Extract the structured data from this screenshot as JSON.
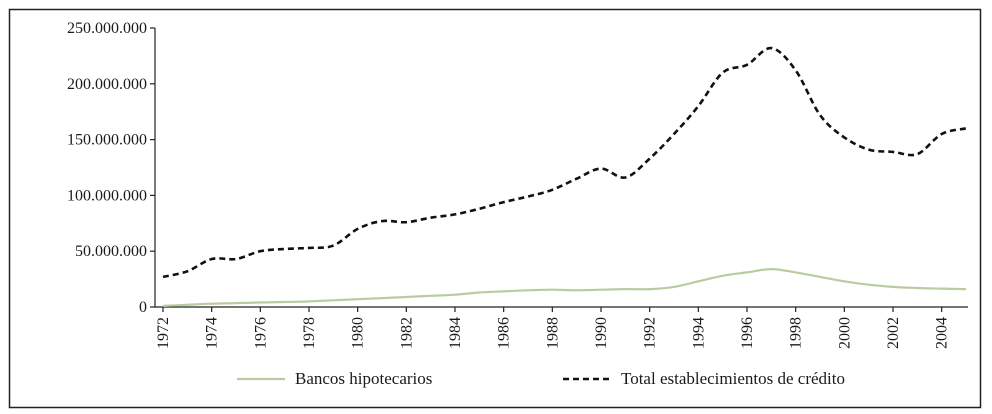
{
  "chart_data": {
    "type": "line",
    "title": "",
    "xlabel": "",
    "ylabel": "",
    "categories": [
      "1972",
      "1973",
      "1974",
      "1975",
      "1976",
      "1977",
      "1978",
      "1979",
      "1980",
      "1981",
      "1982",
      "1983",
      "1984",
      "1985",
      "1986",
      "1987",
      "1988",
      "1989",
      "1990",
      "1991",
      "1992",
      "1993",
      "1994",
      "1995",
      "1996",
      "1997",
      "1998",
      "1999",
      "2000",
      "2001",
      "2002",
      "2003",
      "2004",
      "2005"
    ],
    "x_tick_labels": [
      "1972",
      "1974",
      "1976",
      "1978",
      "1980",
      "1982",
      "1984",
      "1986",
      "1988",
      "1990",
      "1992",
      "1994",
      "1996",
      "1998",
      "2000",
      "2002",
      "2004"
    ],
    "ylim": [
      0,
      250000000
    ],
    "y_ticks": [
      0,
      50000000,
      100000000,
      150000000,
      200000000,
      250000000
    ],
    "y_tick_labels": [
      "0",
      "50.000.000",
      "100.000.000",
      "150.000.000",
      "200.000.000",
      "250.000.000"
    ],
    "grid": false,
    "legend_position": "bottom",
    "series": [
      {
        "name": "Bancos hipotecarios",
        "color": "#b9cca1",
        "style": "solid",
        "values": [
          1000000,
          2000000,
          3000000,
          3500000,
          4000000,
          4500000,
          5000000,
          6000000,
          7000000,
          8000000,
          9000000,
          10000000,
          11000000,
          13000000,
          14000000,
          15000000,
          15500000,
          15000000,
          15500000,
          16000000,
          16000000,
          18000000,
          23000000,
          28000000,
          31000000,
          34000000,
          31000000,
          27000000,
          23000000,
          20000000,
          18000000,
          17000000,
          16500000,
          16000000
        ]
      },
      {
        "name": "Total establecimientos de crédito",
        "color": "#111111",
        "style": "dashed",
        "values": [
          27000000,
          32000000,
          43000000,
          43000000,
          50000000,
          52000000,
          53000000,
          55000000,
          70000000,
          77000000,
          76000000,
          80000000,
          83000000,
          88000000,
          94000000,
          99000000,
          105000000,
          115000000,
          124000000,
          116000000,
          133000000,
          155000000,
          180000000,
          210000000,
          217000000,
          232000000,
          212000000,
          172000000,
          152000000,
          141000000,
          139000000,
          137000000,
          155000000,
          160000000
        ]
      }
    ]
  }
}
